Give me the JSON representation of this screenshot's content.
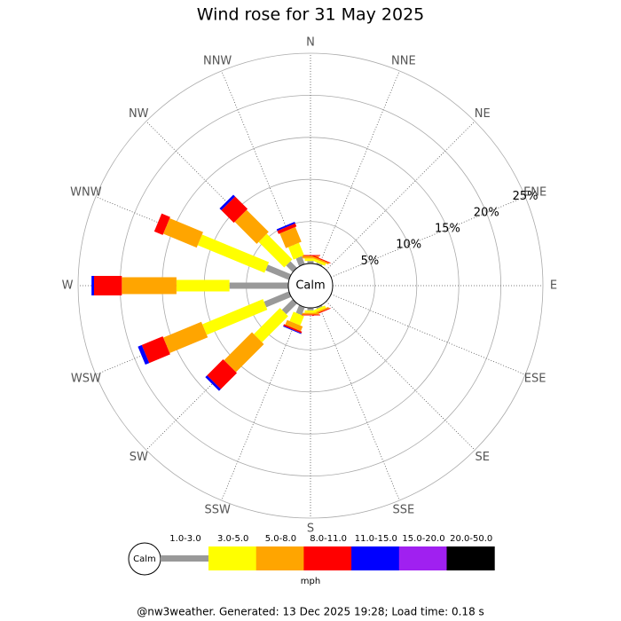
{
  "chart_data": {
    "type": "windrose",
    "title": "Wind rose for 31 May 2025",
    "categories": [
      "N",
      "NNE",
      "NE",
      "ENE",
      "E",
      "ESE",
      "SE",
      "SSE",
      "S",
      "SSW",
      "SW",
      "WSW",
      "W",
      "WNW",
      "NW",
      "NNW"
    ],
    "series": [
      {
        "name": "1.0-3.0",
        "color": "#999999",
        "values": [
          0.3,
          0.2,
          0,
          0,
          0,
          0,
          0,
          0.2,
          0.3,
          1.0,
          1.8,
          3.2,
          7.0,
          3.0,
          1.1,
          1.0
        ]
      },
      {
        "name": "3.0-5.0",
        "color": "#ffff00",
        "values": [
          0.3,
          0.3,
          0,
          0,
          0,
          0,
          0,
          0.3,
          0.3,
          1.2,
          4.4,
          7.8,
          6.3,
          8.6,
          4.3,
          1.6
        ]
      },
      {
        "name": "5.0-8.0",
        "color": "#ffa500",
        "values": [
          0.3,
          0.2,
          0,
          0,
          0,
          0,
          0,
          0.2,
          0.2,
          0.6,
          4.7,
          4.9,
          6.5,
          4.3,
          3.7,
          1.9
        ]
      },
      {
        "name": "8.0-11.0",
        "color": "#ff0000",
        "values": [
          0.1,
          0.1,
          0,
          0,
          0,
          0,
          0,
          0.1,
          0.1,
          0.2,
          2.7,
          2.7,
          3.3,
          1.1,
          2.1,
          0.4
        ]
      },
      {
        "name": "11.0-15.0",
        "color": "#0000ff",
        "values": [
          0,
          0,
          0,
          0,
          0,
          0,
          0,
          0,
          0,
          0.1,
          0.3,
          0.5,
          0.3,
          0,
          0.3,
          0.2
        ]
      },
      {
        "name": "15.0-20.0",
        "color": "#a020f0",
        "values": [
          0,
          0,
          0,
          0,
          0,
          0,
          0,
          0,
          0,
          0,
          0,
          0,
          0,
          0,
          0,
          0
        ]
      },
      {
        "name": "20.0-50.0",
        "color": "#000000",
        "values": [
          0,
          0,
          0,
          0,
          0,
          0,
          0,
          0,
          0,
          0,
          0,
          0,
          0,
          0,
          0,
          0
        ]
      }
    ],
    "rlim": [
      0,
      25
    ],
    "rticks": [
      {
        "value": 5,
        "label": "5%"
      },
      {
        "value": 10,
        "label": "10%"
      },
      {
        "value": 15,
        "label": "15%"
      },
      {
        "value": 20,
        "label": "20%"
      },
      {
        "value": 25,
        "label": "25%"
      }
    ],
    "calm_label": "Calm",
    "legend_unit": "mph",
    "footer": "@nw3weather. Generated: 13 Dec 2025 19:28; Load time: 0.18 s"
  }
}
